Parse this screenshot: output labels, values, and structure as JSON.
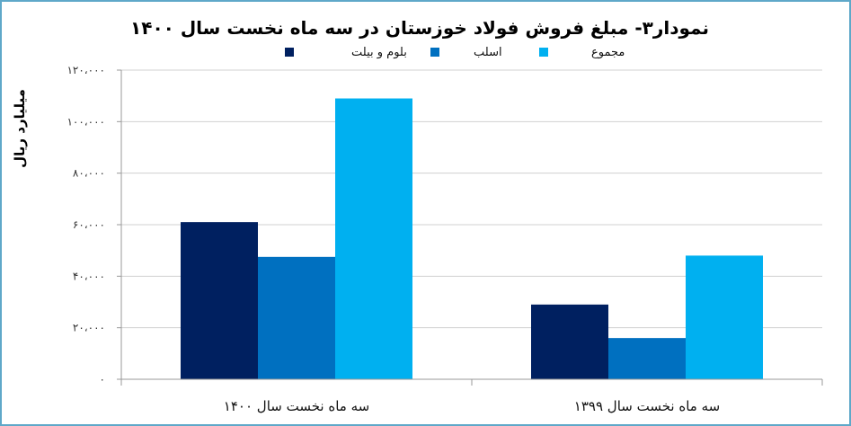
{
  "chart_data": {
    "type": "bar",
    "title": "نمودار۳- مبلغ فروش فولاد خوزستان در سه ماه نخست سال ۱۴۰۰",
    "ylabel": "میلیارد ریال",
    "xlabel": "",
    "ylim": [
      0,
      120000
    ],
    "ytick_values": [
      0,
      20000,
      40000,
      60000,
      80000,
      100000,
      120000
    ],
    "ytick_labels": [
      "۰",
      "۲۰،۰۰۰",
      "۴۰،۰۰۰",
      "۶۰،۰۰۰",
      "۸۰،۰۰۰",
      "۱۰۰،۰۰۰",
      "۱۲۰،۰۰۰"
    ],
    "categories": [
      "سه ماه نخست سال ۱۴۰۰",
      "سه ماه نخست سال ۱۳۹۹"
    ],
    "series": [
      {
        "name": "بلوم و بیلت",
        "color": "#002060",
        "values": [
          61000,
          29000
        ]
      },
      {
        "name": "اسلب",
        "color": "#0070c0",
        "values": [
          47500,
          16000
        ]
      },
      {
        "name": "مجموع",
        "color": "#00b0f0",
        "values": [
          109000,
          48000
        ]
      }
    ],
    "grid": true,
    "legend_position": "top"
  }
}
